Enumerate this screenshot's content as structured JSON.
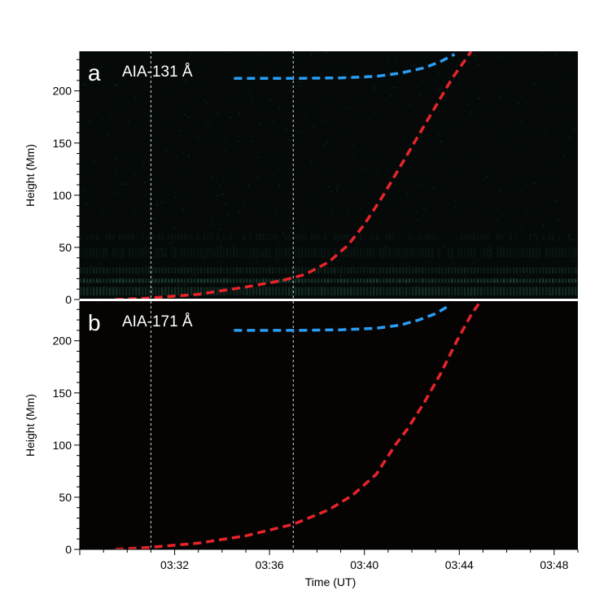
{
  "chart_data": [
    {
      "type": "heatmap",
      "panel_letter": "a",
      "title": "AIA-131 Å",
      "xlabel": "",
      "ylabel": "Height (Mm)",
      "xlim": [
        "03:28",
        "03:49"
      ],
      "ylim": [
        0,
        238
      ],
      "yticks": [
        0,
        50,
        100,
        150,
        200
      ],
      "grid": false,
      "colormap": {
        "low": "#050a08",
        "high": "#5fe0b8"
      },
      "vertical_dashed_lines": [
        "03:31",
        "03:37"
      ],
      "series": [
        {
          "color": "#2a9df4",
          "style": "dashed",
          "points": [
            [
              "03:34.5",
              212
            ],
            [
              "03:37",
              212
            ],
            [
              "03:39",
              212.5
            ],
            [
              "03:40.5",
              214
            ],
            [
              "03:41.5",
              217
            ],
            [
              "03:42.5",
              222
            ],
            [
              "03:43.2",
              228
            ],
            [
              "03:43.8",
              235
            ]
          ]
        },
        {
          "color": "#e8242b",
          "style": "dashed",
          "points": [
            [
              "03:29.5",
              0
            ],
            [
              "03:31",
              1.5
            ],
            [
              "03:33",
              5
            ],
            [
              "03:35",
              12
            ],
            [
              "03:36.5",
              18
            ],
            [
              "03:37.5",
              24
            ],
            [
              "03:38.5",
              36
            ],
            [
              "03:39.3",
              52
            ],
            [
              "03:40",
              72
            ],
            [
              "03:40.8",
              100
            ],
            [
              "03:41.5",
              127
            ],
            [
              "03:42.3",
              158
            ],
            [
              "03:43",
              185
            ],
            [
              "03:43.7",
              212
            ],
            [
              "03:44.2",
              228
            ],
            [
              "03:44.5",
              238
            ]
          ]
        }
      ]
    },
    {
      "type": "heatmap",
      "panel_letter": "b",
      "title": "AIA-171 Å",
      "xlabel": "Time (UT)",
      "ylabel": "Height (Mm)",
      "xlim": [
        "03:28",
        "03:49"
      ],
      "ylim": [
        0,
        238
      ],
      "yticks": [
        0,
        50,
        100,
        150,
        200
      ],
      "xticks": [
        "03:32",
        "03:36",
        "03:40",
        "03:44",
        "03:48"
      ],
      "grid": false,
      "colormap": {
        "low": "#0a0704",
        "high": "#ffb214"
      },
      "vertical_dashed_lines": [
        "03:31",
        "03:37"
      ],
      "series": [
        {
          "color": "#2a9df4",
          "style": "dashed",
          "points": [
            [
              "03:34.5",
              210
            ],
            [
              "03:37",
              210
            ],
            [
              "03:39",
              210.5
            ],
            [
              "03:40.5",
              212
            ],
            [
              "03:41.5",
              215
            ],
            [
              "03:42.3",
              220
            ],
            [
              "03:43",
              226
            ],
            [
              "03:43.6",
              234
            ]
          ]
        },
        {
          "color": "#e8242b",
          "style": "dashed",
          "points": [
            [
              "03:29.5",
              0
            ],
            [
              "03:31",
              2
            ],
            [
              "03:33",
              6
            ],
            [
              "03:35",
              13
            ],
            [
              "03:37",
              24
            ],
            [
              "03:38.5",
              38
            ],
            [
              "03:39.5",
              52
            ],
            [
              "03:40.5",
              72
            ],
            [
              "03:41.3",
              100
            ],
            [
              "03:41.8",
              115
            ],
            [
              "03:42.5",
              140
            ],
            [
              "03:43.2",
              168
            ],
            [
              "03:43.9",
              200
            ],
            [
              "03:44.5",
              225
            ],
            [
              "03:44.9",
              238
            ]
          ]
        }
      ]
    }
  ]
}
